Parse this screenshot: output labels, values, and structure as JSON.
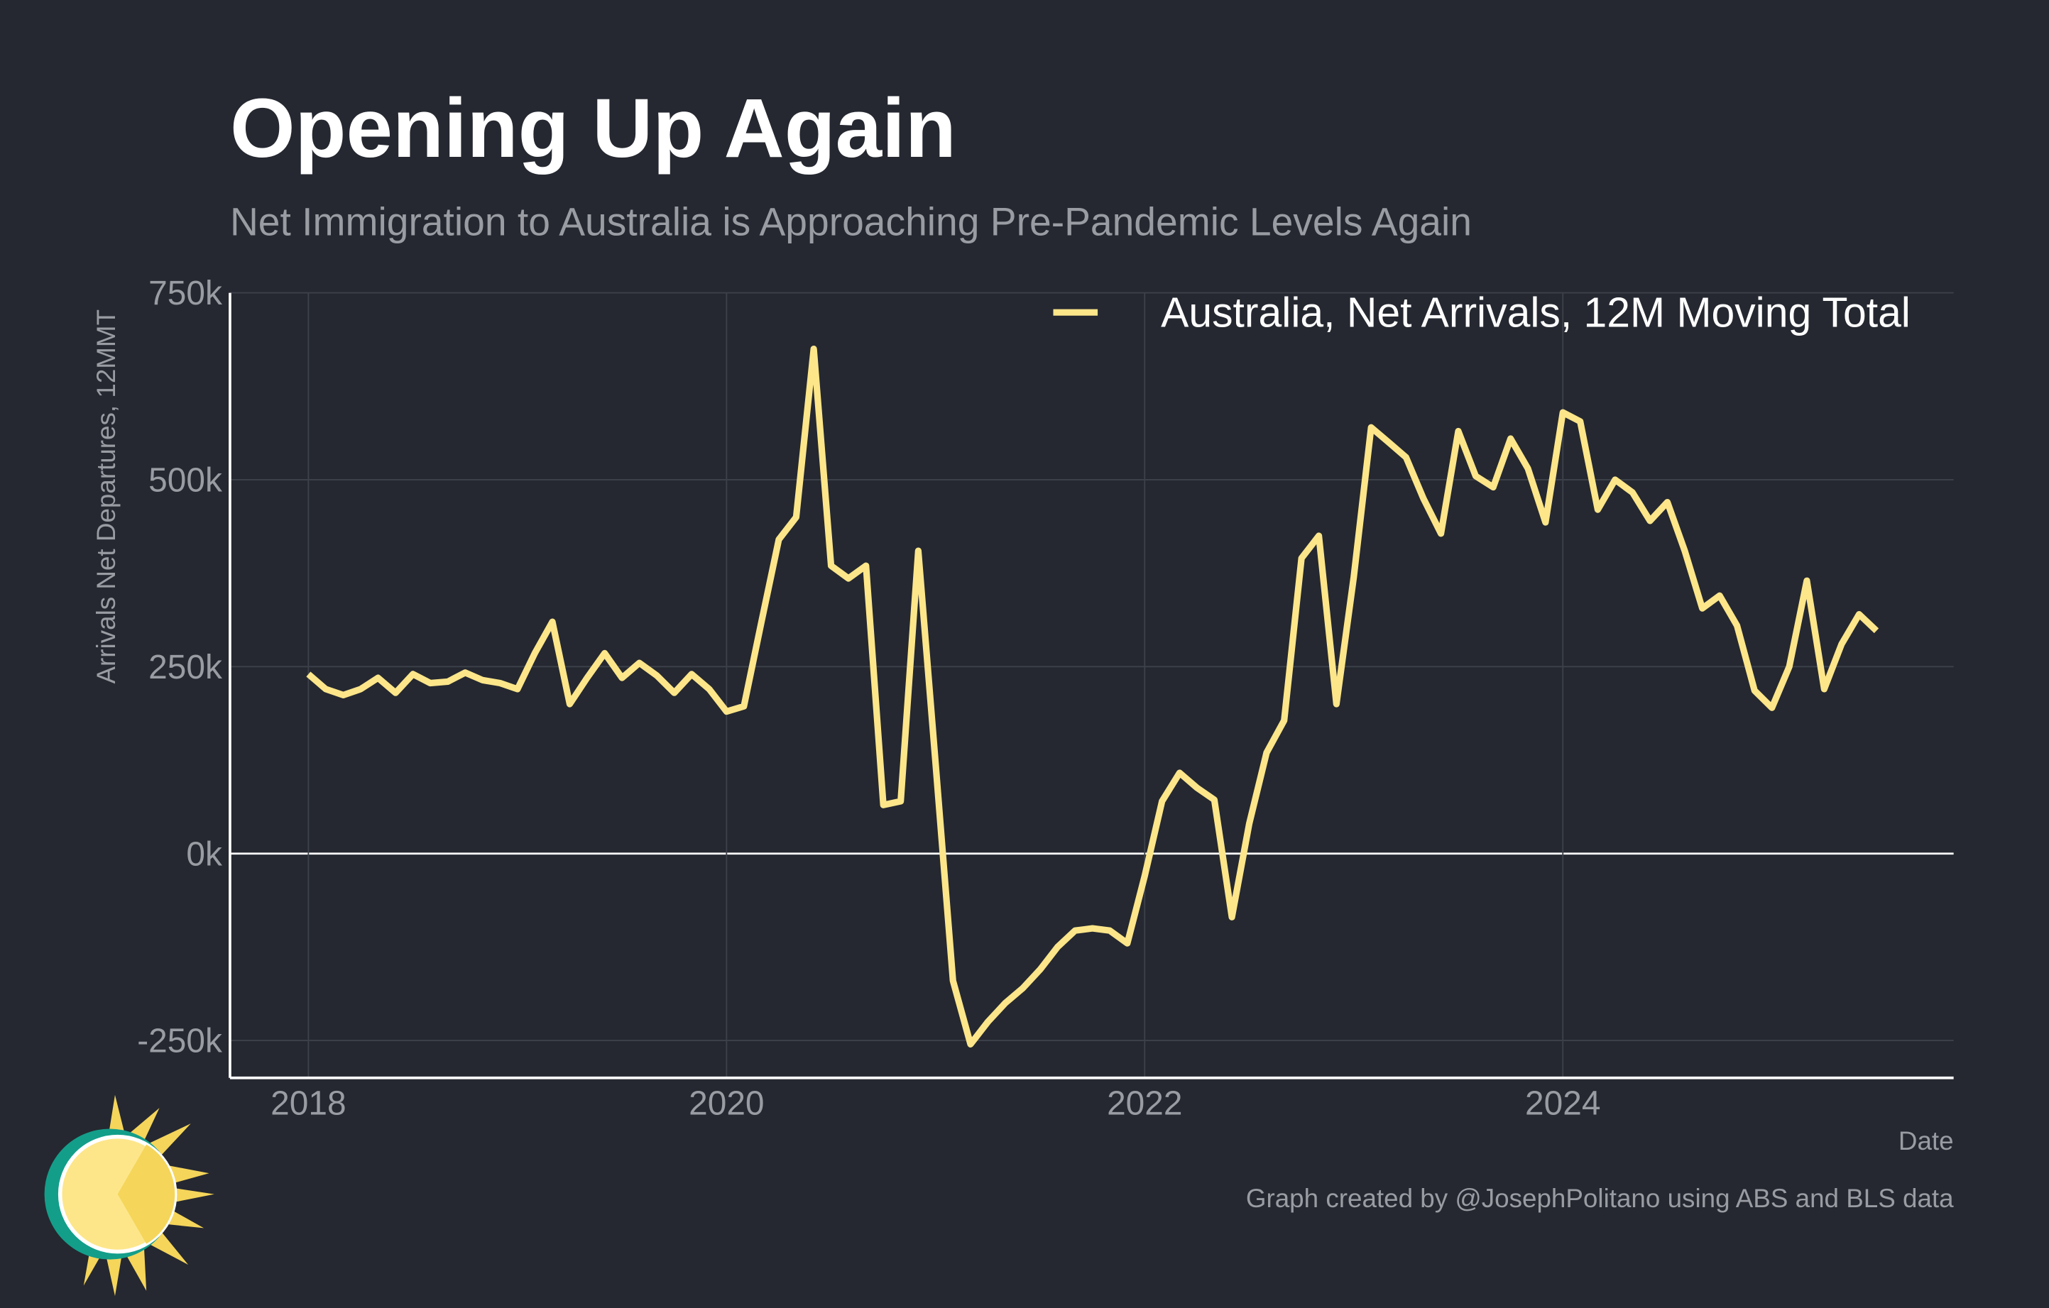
{
  "chart_data": {
    "type": "line",
    "title": "Opening Up Again",
    "subtitle": "Net Immigration to Australia is Approaching Pre-Pandemic Levels Again",
    "x_label": "Date",
    "y_label": "Arrivals Net Departures, 12MMT",
    "caption": "Graph created by @JosephPolitano using ABS and BLS data",
    "legend": "top-right",
    "grid": true,
    "xlim": [
      2017.625,
      2025.869
    ],
    "xticks": [
      2018,
      2020,
      2022,
      2024
    ],
    "ylim": [
      -300,
      750
    ],
    "yticks": [
      {
        "value": -250,
        "label": "-250k"
      },
      {
        "value": 0,
        "label": "0k"
      },
      {
        "value": 250,
        "label": "250k"
      },
      {
        "value": 500,
        "label": "500k"
      },
      {
        "value": 750,
        "label": "750k"
      }
    ],
    "x": [
      2018,
      2018.083,
      2018.167,
      2018.25,
      2018.333,
      2018.417,
      2018.5,
      2018.583,
      2018.667,
      2018.75,
      2018.833,
      2018.917,
      2019,
      2019.083,
      2019.167,
      2019.25,
      2019.333,
      2019.417,
      2019.5,
      2019.583,
      2019.667,
      2019.75,
      2019.833,
      2019.917,
      2020,
      2020.083,
      2020.167,
      2020.25,
      2020.333,
      2020.417,
      2020.5,
      2020.583,
      2020.667,
      2020.75,
      2020.833,
      2020.917,
      2021,
      2021.083,
      2021.167,
      2021.25,
      2021.333,
      2021.417,
      2021.5,
      2021.583,
      2021.667,
      2021.75,
      2021.833,
      2021.917,
      2022,
      2022.083,
      2022.167,
      2022.25,
      2022.333,
      2022.417,
      2022.5,
      2022.583,
      2022.667,
      2022.75,
      2022.833,
      2022.917,
      2023,
      2023.083,
      2023.167,
      2023.25,
      2023.333,
      2023.417,
      2023.5,
      2023.583,
      2023.667,
      2023.75,
      2023.833,
      2023.917,
      2024,
      2024.083,
      2024.167,
      2024.25,
      2024.333,
      2024.417,
      2024.5,
      2024.583,
      2024.667,
      2024.75,
      2024.833,
      2024.917,
      2025,
      2025.083,
      2025.167,
      2025.25,
      2025.333,
      2025.417,
      2025.5
    ],
    "series": [
      {
        "name": "Australia, Net Arrivals, 12M Moving Total",
        "color": "#fde68a",
        "values": [
          240,
          220,
          212,
          220,
          235,
          215,
          240,
          228,
          230,
          242,
          232,
          228,
          220,
          268,
          310,
          200,
          235,
          268,
          235,
          255,
          238,
          215,
          240,
          220,
          190,
          197,
          310,
          420,
          450,
          675,
          385,
          368,
          385,
          65,
          70,
          405,
          120,
          -170,
          -255,
          -225,
          -200,
          -180,
          -155,
          -125,
          -103,
          -100,
          -103,
          -120,
          -30,
          70,
          108,
          88,
          72,
          -85,
          40,
          135,
          178,
          395,
          425,
          200,
          370,
          570,
          550,
          530,
          475,
          428,
          565,
          505,
          490,
          555,
          515,
          443,
          590,
          578,
          460,
          500,
          483,
          445,
          470,
          405,
          328,
          345,
          305,
          218,
          195,
          250,
          365,
          220,
          280,
          320,
          298
        ]
      }
    ]
  }
}
